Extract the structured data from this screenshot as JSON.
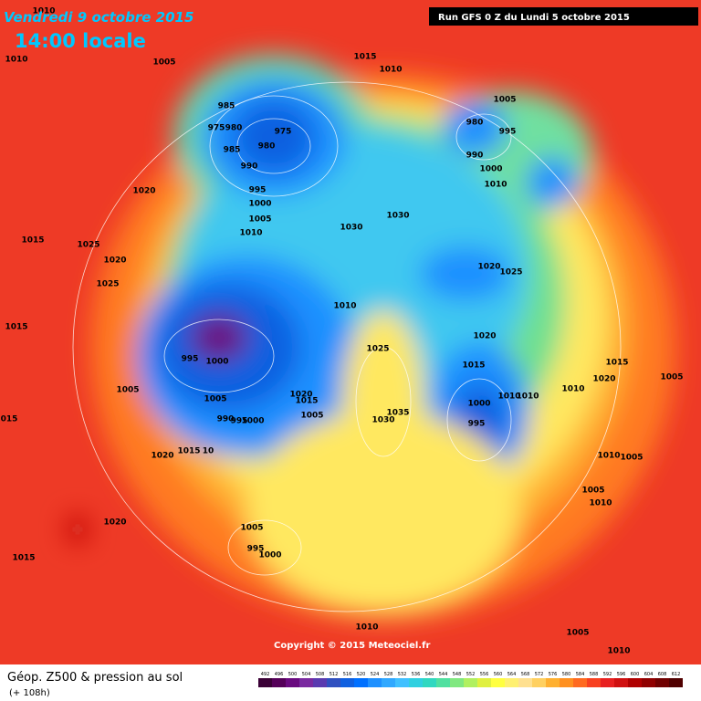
{
  "header": {
    "date": "Vendredi 9 octobre 2015",
    "time": "14:00 locale",
    "run": "Run GFS 0 Z du Lundi 5 octobre 2015"
  },
  "footer": {
    "title": "Géop. Z500 & pression au sol",
    "subtitle": "(+ 108h)",
    "copyright": "Copyright © 2015 Meteociel.fr"
  },
  "legend": {
    "values": [
      492,
      496,
      500,
      504,
      508,
      512,
      516,
      520,
      524,
      528,
      532,
      536,
      540,
      544,
      548,
      552,
      556,
      560,
      564,
      568,
      572,
      576,
      580,
      584,
      588,
      592,
      596,
      600,
      604,
      608,
      612
    ],
    "colors": [
      "#3a0036",
      "#550059",
      "#6a0a80",
      "#7a2aa0",
      "#5a3ab0",
      "#3050c0",
      "#1060e0",
      "#0070ff",
      "#1e90ff",
      "#30a8ff",
      "#40c0ff",
      "#30d0e0",
      "#30d8c0",
      "#50e0a0",
      "#80e880",
      "#b0f060",
      "#e0f040",
      "#ffff40",
      "#fff070",
      "#ffe090",
      "#ffd060",
      "#ffb030",
      "#ff9020",
      "#ff6a20",
      "#f84020",
      "#e82020",
      "#d01010",
      "#b00000",
      "#900000",
      "#700000",
      "#500000"
    ]
  },
  "isobar_labels": [
    "1010",
    "1010",
    "1005",
    "1015",
    "1010",
    "1005",
    "985",
    "975",
    "980",
    "975",
    "985",
    "980",
    "990",
    "995",
    "1000",
    "1005",
    "1010",
    "980",
    "995",
    "990",
    "1000",
    "1010",
    "1020",
    "1030",
    "1030",
    "1015",
    "1025",
    "1020",
    "1025",
    "1020",
    "1025",
    "1010",
    "1015",
    "1020",
    "1025",
    "995",
    "1000",
    "1015",
    "1015",
    "1020",
    "1005",
    "1005",
    "1020",
    "1015",
    "1010",
    "1005",
    "1000",
    "1010",
    "1010",
    "1035",
    "1005",
    "990",
    "995",
    "1000",
    "1030",
    "995",
    "015",
    "1020",
    "1015",
    "10",
    "1010",
    "1005",
    "1005",
    "1010",
    "1020",
    "1005",
    "995",
    "1000",
    "1015",
    "1010",
    "1005",
    "1010"
  ]
}
